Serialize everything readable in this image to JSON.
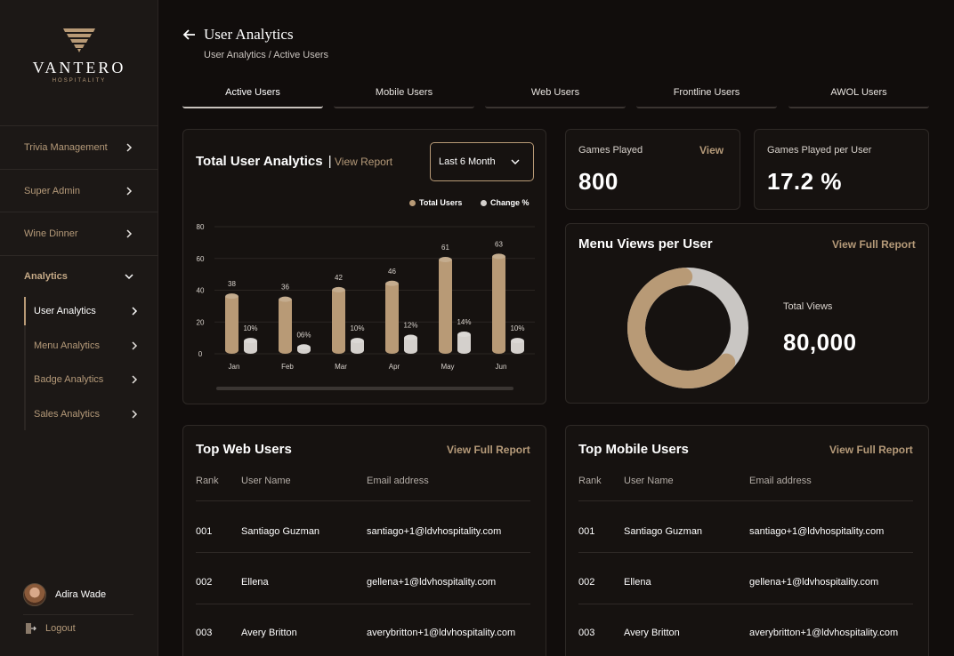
{
  "brand": {
    "name": "VANTERO",
    "tagline": "HOSPITALITY"
  },
  "sidebar": {
    "items": [
      {
        "label": "Trivia Management"
      },
      {
        "label": "Super Admin"
      },
      {
        "label": "Wine Dinner"
      },
      {
        "label": "Analytics"
      }
    ],
    "sub_items": [
      {
        "label": "User Analytics"
      },
      {
        "label": "Menu Analytics"
      },
      {
        "label": "Badge Analytics"
      },
      {
        "label": "Sales Analytics"
      }
    ],
    "user_name": "Adira Wade",
    "logout_label": "Logout"
  },
  "header": {
    "title": "User Analytics",
    "breadcrumb": "User Analytics / Active Users"
  },
  "tabs": [
    {
      "label": "Active Users"
    },
    {
      "label": "Mobile Users"
    },
    {
      "label": "Web Users"
    },
    {
      "label": "Frontline Users"
    },
    {
      "label": "AWOL Users"
    }
  ],
  "analytics_card": {
    "title": "Total User Analytics",
    "link": "View Report",
    "period": "Last 6 Month"
  },
  "chart_data": {
    "type": "bar",
    "categories": [
      "Jan",
      "Feb",
      "Mar",
      "Apr",
      "May",
      "Jun"
    ],
    "series": [
      {
        "name": "Total Users",
        "values": [
          38,
          36,
          42,
          46,
          61,
          63
        ],
        "labels": [
          "38",
          "36",
          "42",
          "46",
          "61",
          "63"
        ],
        "color": "#b89a76"
      },
      {
        "name": "Change %",
        "values": [
          10,
          6,
          10,
          12,
          14,
          10
        ],
        "labels": [
          "10%",
          "06%",
          "10%",
          "12%",
          "14%",
          "10%"
        ],
        "color": "#d4d0cc"
      }
    ],
    "yticks": [
      "0",
      "20",
      "40",
      "60",
      "80"
    ],
    "ylim": [
      0,
      80
    ],
    "legend_position": "top-right"
  },
  "stats": {
    "games_played": {
      "label": "Games Played",
      "link": "View",
      "value": "800"
    },
    "games_per_user": {
      "label": "Games Played per User",
      "value": "17.2 %"
    }
  },
  "menu_views": {
    "title": "Menu Views per User",
    "link": "View Full Report",
    "total_label": "Total Views",
    "total_value": "80,000",
    "donut": {
      "gold_fraction": 0.62,
      "gold_color": "#b89a76",
      "grey_color": "#c9c6c3"
    }
  },
  "web_users": {
    "title": "Top Web Users",
    "link": "View Full Report",
    "headers": [
      "Rank",
      "User Name",
      "Email address"
    ],
    "rows": [
      [
        "001",
        "Santiago Guzman",
        "santiago+1@ldvhospitality.com"
      ],
      [
        "002",
        "Ellena",
        "gellena+1@ldvhospitality.com"
      ],
      [
        "003",
        "Avery Britton",
        "averybritton+1@ldvhospitality.com"
      ]
    ]
  },
  "mobile_users": {
    "title": "Top Mobile Users",
    "link": "View Full Report",
    "headers": [
      "Rank",
      "User Name",
      "Email address"
    ],
    "rows": [
      [
        "001",
        "Santiago Guzman",
        "santiago+1@ldvhospitality.com"
      ],
      [
        "002",
        "Ellena",
        "gellena+1@ldvhospitality.com"
      ],
      [
        "003",
        "Avery Britton",
        "averybritton+1@ldvhospitality.com"
      ]
    ]
  }
}
